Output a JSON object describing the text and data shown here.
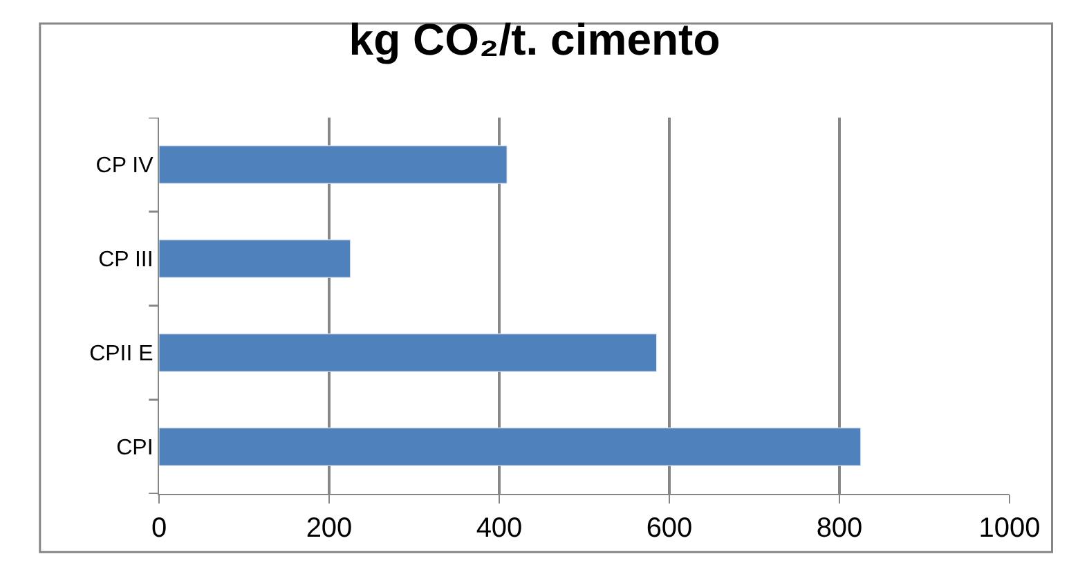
{
  "chart_data": {
    "type": "bar",
    "orientation": "horizontal",
    "title": "kg CO₂/t. cimento",
    "categories": [
      "CP IV",
      "CP III",
      "CPII E",
      "CPI"
    ],
    "values": [
      409,
      225,
      585,
      825
    ],
    "color": "#4f81bd",
    "xlim": [
      0,
      1000
    ],
    "xticks": [
      0,
      200,
      400,
      600,
      800,
      1000
    ],
    "grid": "x"
  }
}
